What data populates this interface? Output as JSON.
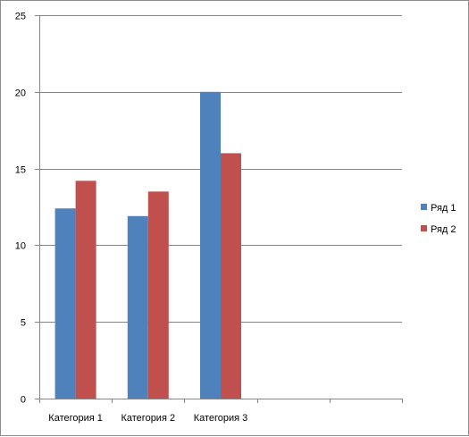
{
  "chart_data": {
    "type": "bar",
    "categories": [
      "Категория 1",
      "Категория 2",
      "Категория 3",
      "",
      ""
    ],
    "series": [
      {
        "name": "Ряд 1",
        "color": "#4f81bd",
        "values": [
          12.4,
          11.9,
          20,
          null,
          null
        ]
      },
      {
        "name": "Ряд 2",
        "color": "#c0504d",
        "values": [
          14.2,
          13.5,
          16,
          null,
          null
        ]
      }
    ],
    "y_ticks": [
      "0",
      "5",
      "10",
      "15",
      "20",
      "25"
    ],
    "ylim": [
      0,
      25
    ],
    "y_step": 5,
    "grid": "major-horizontal",
    "legend_position": "right",
    "title": "",
    "xlabel": "",
    "ylabel": ""
  }
}
